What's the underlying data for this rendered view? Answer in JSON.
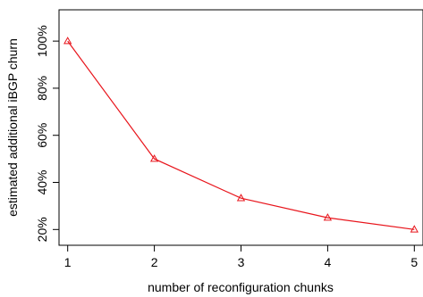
{
  "chart_data": {
    "type": "line",
    "title": "",
    "xlabel": "number of reconfiguration chunks",
    "ylabel": "estimated additional iBGP churn",
    "x": [
      1,
      2,
      3,
      4,
      5
    ],
    "xlim": [
      0.9,
      5.1
    ],
    "ylim": [
      0.133,
      1.133
    ],
    "x_ticks": [
      1,
      2,
      3,
      4,
      5
    ],
    "x_tick_labels": [
      "1",
      "2",
      "3",
      "4",
      "5"
    ],
    "y_ticks": [
      0.2,
      0.4,
      0.6,
      0.8,
      1.0
    ],
    "y_tick_labels": [
      "20%",
      "40%",
      "60%",
      "80%",
      "100%"
    ],
    "series": [
      {
        "values": [
          1.0,
          0.5,
          0.333,
          0.25,
          0.2
        ],
        "color": "#e8141b",
        "marker": "triangle-open"
      }
    ],
    "grid": false,
    "legend": "none"
  }
}
